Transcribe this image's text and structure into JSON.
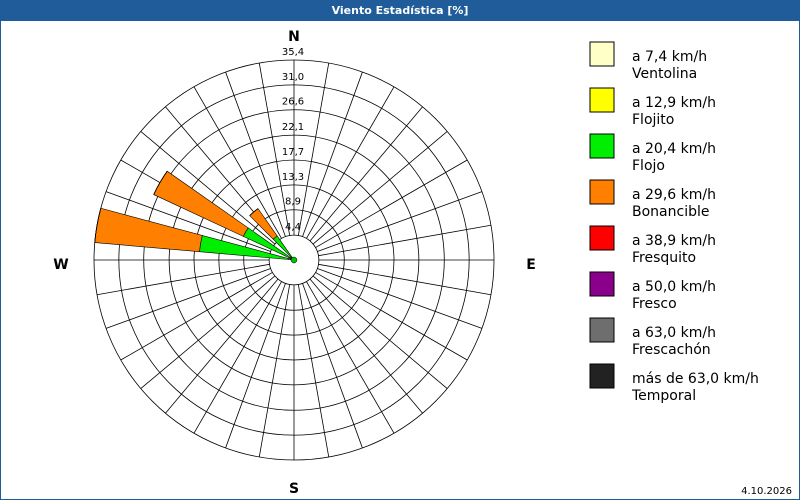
{
  "chart_data": {
    "type": "windrose",
    "title": "Viento Estadística [%]",
    "footer": "4.10.2026",
    "compass": [
      "N",
      "E",
      "S",
      "W"
    ],
    "x": [
      280,
      300,
      320
    ],
    "ylim": [
      0,
      35.4
    ],
    "yticks": [
      {
        "value": 4.4,
        "label": "4,4"
      },
      {
        "value": 8.9,
        "label": "8,9"
      },
      {
        "value": 13.3,
        "label": "13,3"
      },
      {
        "value": 17.7,
        "label": "17,7"
      },
      {
        "value": 22.1,
        "label": "22,1"
      },
      {
        "value": 26.6,
        "label": "26,6"
      },
      {
        "value": 31.0,
        "label": "31,0"
      },
      {
        "value": 35.4,
        "label": "35,4"
      }
    ],
    "series": [
      {
        "name": "a 7,4 km/h",
        "label": "Ventolina",
        "color": "#ffffc8",
        "values": [
          0.4,
          0.3,
          0.3
        ]
      },
      {
        "name": "a 12,9 km/h",
        "label": "Flojito",
        "color": "#ffff00",
        "values": [
          0.6,
          0.5,
          0.4
        ]
      },
      {
        "name": "a 20,4 km/h",
        "label": "Flojo",
        "color": "#00ee00",
        "values": [
          15.8,
          9.1,
          4.5
        ]
      },
      {
        "name": "a 29,6 km/h",
        "label": "Bonancible",
        "color": "#ff8000",
        "values": [
          18.6,
          17.5,
          5.9
        ]
      },
      {
        "name": "a 38,9 km/h",
        "label": "Fresquito",
        "color": "#ff0000",
        "values": [
          0,
          0,
          0
        ]
      },
      {
        "name": "a 50,0 km/h",
        "label": "Fresco",
        "color": "#8b008b",
        "values": [
          0,
          0,
          0
        ]
      },
      {
        "name": "a 63,0 km/h",
        "label": "Frescachón",
        "color": "#6e6e6e",
        "values": [
          0,
          0,
          0
        ]
      },
      {
        "name": "más de 63,0 km/h",
        "label": "Temporal",
        "color": "#222222",
        "values": [
          0,
          0,
          0
        ]
      }
    ]
  }
}
